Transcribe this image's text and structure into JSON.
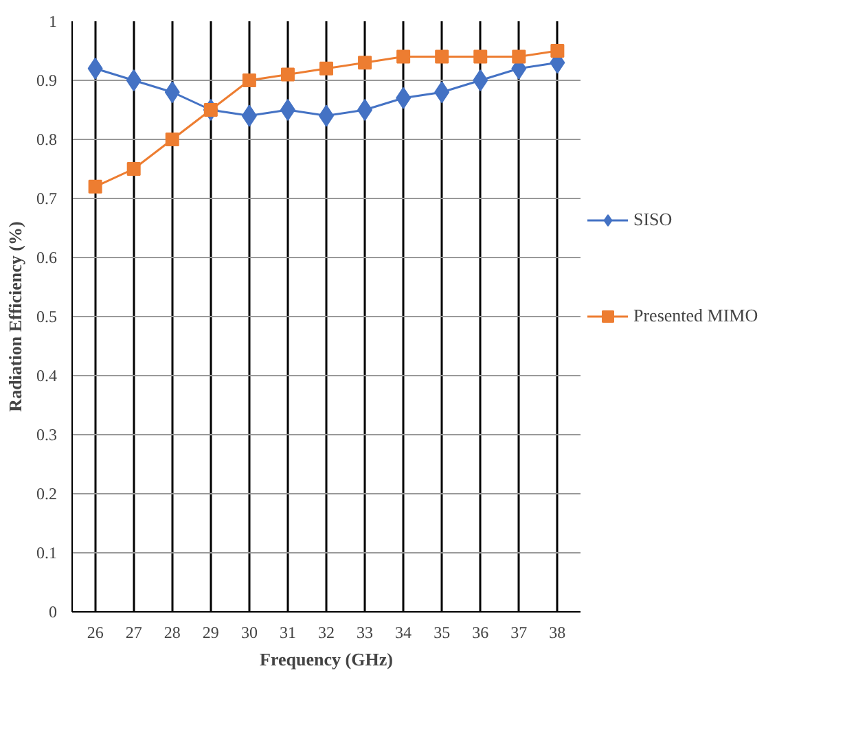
{
  "chart_data": {
    "type": "line",
    "xlabel": "Frequency (GHz)",
    "ylabel": "Radiation Efficiency (%)",
    "categories": [
      "26",
      "27",
      "28",
      "29",
      "30",
      "31",
      "32",
      "33",
      "34",
      "35",
      "36",
      "37",
      "38"
    ],
    "series": [
      {
        "name": "SISO",
        "color": "#4472c4",
        "marker": "diamond",
        "values": [
          0.92,
          0.9,
          0.88,
          0.85,
          0.84,
          0.85,
          0.84,
          0.85,
          0.87,
          0.88,
          0.9,
          0.92,
          0.93
        ]
      },
      {
        "name": "Presented MIMO",
        "color": "#ed7d31",
        "marker": "square",
        "values": [
          0.72,
          0.75,
          0.8,
          0.85,
          0.9,
          0.91,
          0.92,
          0.93,
          0.94,
          0.94,
          0.94,
          0.94,
          0.95
        ]
      }
    ],
    "ylim": [
      0,
      1
    ],
    "yticks": [
      0,
      0.1,
      0.2,
      0.3,
      0.4,
      0.5,
      0.6,
      0.7,
      0.8,
      0.9,
      1
    ],
    "grid": true,
    "legend": "right"
  }
}
